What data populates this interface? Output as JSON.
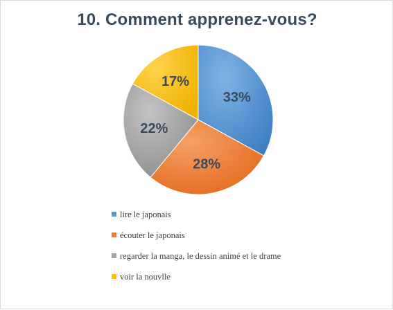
{
  "chart_data": {
    "type": "pie",
    "title": "10. Comment apprenez-vous?",
    "categories": [
      "lire le japonais",
      "écouter le japonais",
      "regarder la manga, le dessin animé et le drame",
      "voir la nouvlle"
    ],
    "values": [
      33,
      28,
      22,
      17
    ],
    "labels": [
      "33%",
      "28%",
      "22%",
      "17%"
    ],
    "colors": [
      "#5b9bd5",
      "#ed7d31",
      "#a5a5a5",
      "#ffc000"
    ],
    "legend_position": "bottom"
  }
}
